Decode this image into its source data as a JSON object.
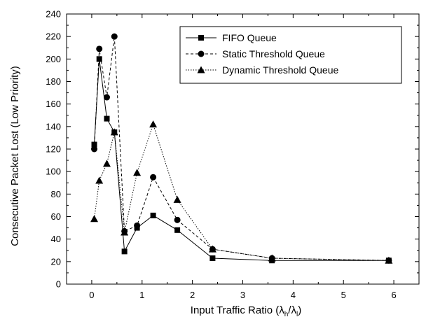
{
  "chart_data": {
    "type": "line",
    "title": "",
    "xlabel": {
      "main": "Input Traffic Ratio (λ",
      "sub1": "h",
      "mid": "/λ",
      "sub2": "l",
      "end": ")"
    },
    "ylabel": "Consecutive Packet Lost (Low Priority)",
    "xlim": [
      -0.5,
      6.5
    ],
    "ylim": [
      0,
      240
    ],
    "xticks": [
      0,
      1,
      2,
      3,
      4,
      5,
      6
    ],
    "yticks": [
      0,
      20,
      40,
      60,
      80,
      100,
      120,
      140,
      160,
      180,
      200,
      220,
      240
    ],
    "grid": false,
    "legend_position": "top-right",
    "series": [
      {
        "name": "FIFO Queue",
        "marker": "square",
        "dash": "solid",
        "x": [
          0.05,
          0.15,
          0.3,
          0.45,
          0.65,
          0.9,
          1.22,
          1.7,
          2.4,
          3.58,
          5.9
        ],
        "y": [
          124,
          200,
          147,
          135,
          29,
          50,
          61,
          48,
          23,
          21,
          21
        ]
      },
      {
        "name": "Static Threshold Queue",
        "marker": "circle",
        "dash": "dashed",
        "x": [
          0.05,
          0.15,
          0.3,
          0.45,
          0.65,
          0.9,
          1.22,
          1.7,
          2.4,
          3.58,
          5.9
        ],
        "y": [
          120,
          209,
          166,
          220,
          47,
          52,
          95,
          57,
          31,
          23,
          21
        ]
      },
      {
        "name": "Dynamic Threshold Queue",
        "marker": "triangle",
        "dash": "dotted",
        "x": [
          0.05,
          0.15,
          0.3,
          0.45,
          0.65,
          0.9,
          1.22,
          1.7,
          2.4,
          3.58,
          5.9
        ],
        "y": [
          58,
          92,
          107,
          135,
          46,
          99,
          142,
          75,
          31,
          23,
          21
        ]
      }
    ]
  }
}
